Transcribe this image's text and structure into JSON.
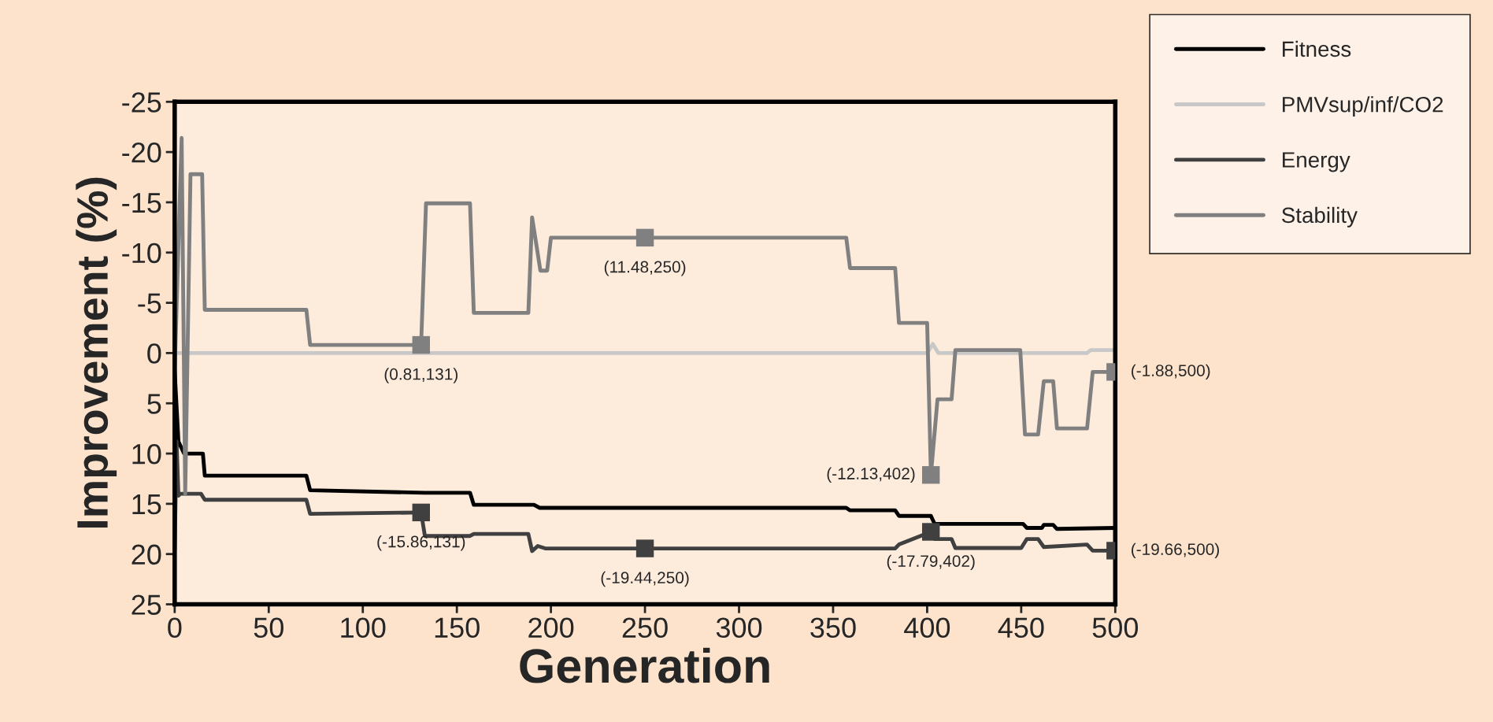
{
  "chart_data": {
    "type": "line",
    "xlabel": "Generation",
    "ylabel": "Improvement (%)",
    "xlim": [
      0,
      500
    ],
    "xticks": [
      0,
      50,
      100,
      150,
      200,
      250,
      300,
      350,
      400,
      450,
      500
    ],
    "ylim": [
      25,
      -25
    ],
    "yticks": [
      -25,
      -20,
      -15,
      -10,
      -5,
      0,
      5,
      10,
      15,
      20,
      25
    ],
    "grid": false,
    "legend": "top right",
    "line_style": "solid",
    "marker": "none",
    "series": [
      {
        "name": "Fitness",
        "color": "#000000",
        "x": [
          0,
          2,
          5,
          15,
          16,
          70,
          72,
          133,
          157,
          159,
          191,
          194,
          357,
          359,
          383,
          385,
          402,
          404,
          451,
          453,
          461,
          462,
          467,
          469,
          500
        ],
        "values": [
          1.8,
          8.8,
          10,
          10,
          12.2,
          12.2,
          13.65,
          13.9,
          13.9,
          15.1,
          15.1,
          15.4,
          15.4,
          15.65,
          15.65,
          16.2,
          16.2,
          17.0,
          17.0,
          17.4,
          17.4,
          17.1,
          17.1,
          17.5,
          17.4
        ]
      },
      {
        "name": "PMVsup/inf/CO2",
        "color": "#c8c8c8",
        "x": [
          0,
          3,
          400,
          403,
          406,
          485,
          487,
          500
        ],
        "values": [
          0,
          0,
          0,
          -0.9,
          0,
          0,
          -0.3,
          -0.3
        ]
      },
      {
        "name": "Energy",
        "color": "#404040",
        "x": [
          0,
          1,
          2,
          3,
          14,
          16,
          70,
          72,
          131,
          133,
          157,
          159,
          188,
          190,
          193,
          197,
          250,
          383,
          385,
          402,
          404,
          413,
          415,
          450,
          453,
          459,
          462,
          485,
          488,
          500
        ],
        "values": [
          19.6,
          8.8,
          14.2,
          14.0,
          14.0,
          14.6,
          14.6,
          16.0,
          15.86,
          18.2,
          18.2,
          18.0,
          18.0,
          19.7,
          19.2,
          19.44,
          19.44,
          19.44,
          19.05,
          17.79,
          18.5,
          18.5,
          19.4,
          19.4,
          18.5,
          18.5,
          19.3,
          19.05,
          19.66,
          19.66
        ]
      },
      {
        "name": "Stability",
        "color": "#808080",
        "x": [
          0,
          3.7,
          5.6,
          8.4,
          14.6,
          16,
          70,
          72,
          131,
          133.6,
          157,
          159,
          188,
          190,
          194.4,
          198,
          200,
          250,
          357,
          359,
          383,
          385,
          400,
          402,
          405.5,
          413,
          415,
          449.5,
          452,
          459,
          462,
          467,
          469,
          485,
          488,
          500
        ],
        "values": [
          1.8,
          -21.4,
          14,
          -17.8,
          -17.8,
          -4.3,
          -4.3,
          -0.81,
          -0.81,
          -14.9,
          -14.9,
          -4.0,
          -4.0,
          -13.5,
          -8.2,
          -8.2,
          -11.48,
          -11.48,
          -11.48,
          -8.45,
          -8.45,
          -3.0,
          -3.0,
          12.13,
          4.6,
          4.6,
          -0.3,
          -0.3,
          8.1,
          8.1,
          2.8,
          2.8,
          7.5,
          7.5,
          1.88,
          1.88
        ]
      },
      {
        "type": "scatter",
        "marker": "square",
        "color": "#808080",
        "x": [
          131,
          250,
          402,
          500
        ],
        "values": [
          -0.81,
          -11.48,
          12.13,
          1.88
        ]
      },
      {
        "type": "scatter",
        "marker": "square",
        "color": "#404040",
        "x": [
          131,
          250,
          402,
          500
        ],
        "values": [
          15.86,
          19.44,
          17.79,
          19.66
        ]
      }
    ],
    "annotations": [
      {
        "text": "(0.81,131)",
        "x": 131,
        "y": -0.81
      },
      {
        "text": "(11.48,250)",
        "x": 250,
        "y": -11.48
      },
      {
        "text": "(-12.13,402)",
        "x": 402,
        "y": 12.13
      },
      {
        "text": "(-1.88,500)",
        "x": 500,
        "y": 1.88
      },
      {
        "text": "(-15.86,131)",
        "x": 131,
        "y": 15.86
      },
      {
        "text": "(-19.44,250)",
        "x": 250,
        "y": 19.44
      },
      {
        "text": "(-17.79,402)",
        "x": 402,
        "y": 17.79
      },
      {
        "text": "(-19.66,500)",
        "x": 500,
        "y": 19.66
      }
    ]
  }
}
